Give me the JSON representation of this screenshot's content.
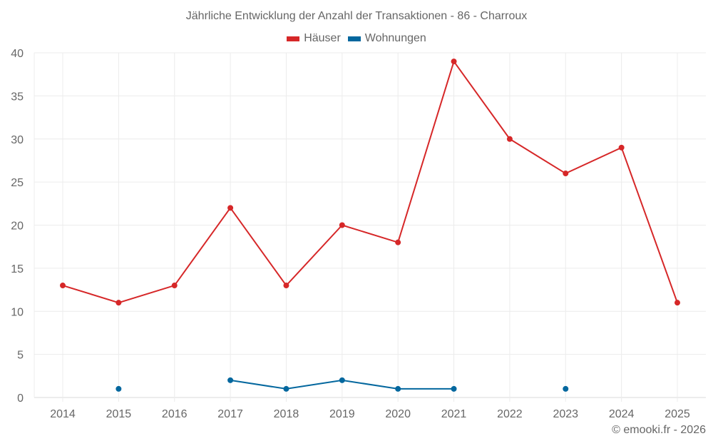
{
  "title": "Jährliche Entwicklung der Anzahl der Transaktionen - 86 - Charroux",
  "legend": [
    {
      "label": "Häuser",
      "color": "#d62728"
    },
    {
      "label": "Wohnungen",
      "color": "#03679e"
    }
  ],
  "copyright": "© emooki.fr - 2026",
  "chart_data": {
    "type": "line",
    "title": "Jährliche Entwicklung der Anzahl der Transaktionen - 86 - Charroux",
    "xlabel": "",
    "ylabel": "",
    "categories": [
      "2014",
      "2015",
      "2016",
      "2017",
      "2018",
      "2019",
      "2020",
      "2021",
      "2022",
      "2023",
      "2024",
      "2025"
    ],
    "series": [
      {
        "name": "Häuser",
        "color": "#d62728",
        "values": [
          13,
          11,
          13,
          22,
          13,
          20,
          18,
          39,
          30,
          26,
          29,
          11
        ]
      },
      {
        "name": "Wohnungen",
        "color": "#03679e",
        "values": [
          null,
          1,
          null,
          2,
          1,
          2,
          1,
          1,
          null,
          1,
          null,
          null
        ]
      }
    ],
    "ylim": [
      0,
      40
    ],
    "yticks": [
      0,
      5,
      10,
      15,
      20,
      25,
      30,
      35,
      40
    ],
    "grid": true,
    "legend_position": "top"
  }
}
